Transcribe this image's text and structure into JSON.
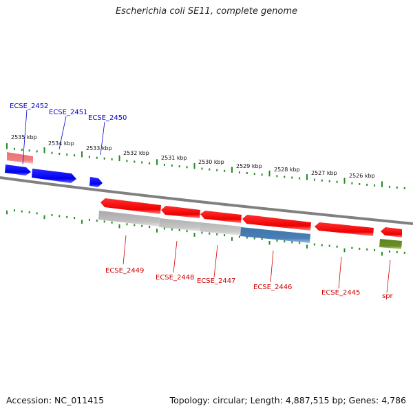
{
  "title": "Escherichia coli SE11, complete genome",
  "footer": {
    "accession": "Accession: NC_011415",
    "summary": "Topology: circular; Length: 4,887,515 bp; Genes: 4,786"
  },
  "colors": {
    "backbone": "#808080",
    "tick": "#228b22",
    "forward_label": "#0000cc",
    "reverse_label": "#cc0000",
    "gene_blue": "#0000ff",
    "gene_red": "#ff0000",
    "gene_gray": "#bbbbbb",
    "gene_steel": "#4a7fb5",
    "gene_olive": "#6b8e23",
    "gene_pink": "#f08080"
  },
  "kbp_labels": [
    "2535 kbp",
    "2534 kbp",
    "2533 kbp",
    "2532 kbp",
    "2531 kbp",
    "2530 kbp",
    "2529 kbp",
    "2528 kbp",
    "2527 kbp",
    "2526 kbp"
  ],
  "forward_labels": [
    "ECSE_2452",
    "ECSE_2451",
    "ECSE_2450"
  ],
  "reverse_labels": [
    "ECSE_2449",
    "ECSE_2448",
    "ECSE_2447",
    "ECSE_2446",
    "ECSE_2445",
    "spr"
  ]
}
